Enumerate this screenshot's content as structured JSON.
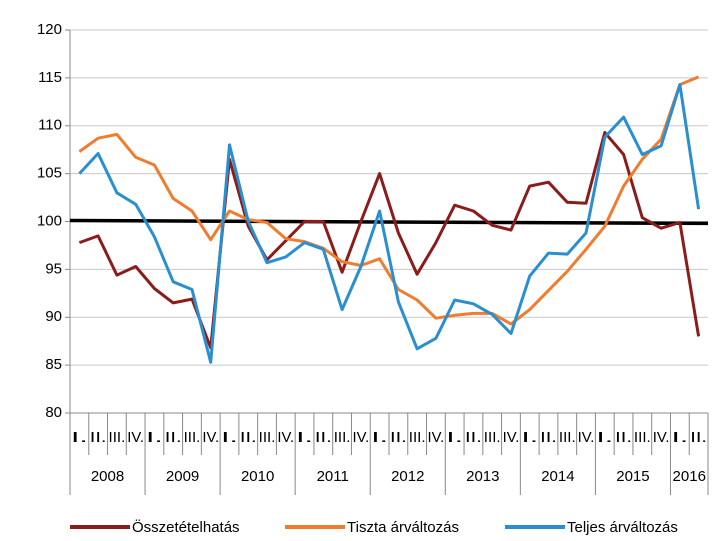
{
  "chart_data": {
    "type": "line",
    "category_groups": [
      {
        "label": "2008",
        "categories": [
          "I.",
          "II.",
          "III.",
          "IV."
        ]
      },
      {
        "label": "2009",
        "categories": [
          "I.",
          "II.",
          "III.",
          "IV."
        ]
      },
      {
        "label": "2010",
        "categories": [
          "I.",
          "II.",
          "III.",
          "IV."
        ]
      },
      {
        "label": "2011",
        "categories": [
          "I.",
          "II.",
          "III.",
          "IV."
        ]
      },
      {
        "label": "2012",
        "categories": [
          "I.",
          "II.",
          "III.",
          "IV."
        ]
      },
      {
        "label": "2013",
        "categories": [
          "I.",
          "II.",
          "III.",
          "IV."
        ]
      },
      {
        "label": "2014",
        "categories": [
          "I.",
          "II.",
          "III.",
          "IV."
        ]
      },
      {
        "label": "2015",
        "categories": [
          "I.",
          "II.",
          "III.",
          "IV."
        ]
      },
      {
        "label": "2016",
        "categories": [
          "I.",
          "II."
        ]
      }
    ],
    "series": [
      {
        "name": "Összetételhatás",
        "color": "#8b1c1c",
        "values": [
          97.8,
          98.5,
          94.4,
          95.3,
          93,
          91.5,
          91.9,
          86.8,
          106.5,
          99.5,
          96,
          98,
          100,
          100,
          94.7,
          100,
          105,
          98.8,
          94.5,
          97.8,
          101.7,
          101.1,
          99.6,
          99.1,
          103.7,
          104.1,
          102,
          101.9,
          109.3,
          107,
          100.4,
          99.3,
          99.9,
          88
        ]
      },
      {
        "name": "Tiszta árváltozás",
        "color": "#f07c30",
        "values": [
          107.3,
          108.7,
          109.1,
          106.7,
          105.9,
          102.4,
          101.1,
          98.1,
          101.1,
          100.2,
          99.9,
          98.2,
          97.9,
          97.2,
          95.8,
          95.4,
          96.1,
          92.9,
          91.8,
          89.9,
          90.2,
          90.4,
          90.4,
          89.3,
          90.8,
          92.8,
          94.8,
          97.1,
          99.5,
          103.7,
          106.5,
          108.6,
          114.3,
          115.1
        ]
      },
      {
        "name": "Teljes árváltozás",
        "color": "#2a8fd0",
        "values": [
          105,
          107.1,
          103,
          101.8,
          98.4,
          93.7,
          92.9,
          85.3,
          108,
          100,
          95.7,
          96.3,
          97.8,
          97.1,
          90.8,
          95.3,
          101.1,
          91.6,
          86.7,
          87.8,
          91.8,
          91.4,
          90.3,
          88.3,
          94.3,
          96.7,
          96.6,
          98.8,
          108.8,
          110.9,
          107,
          107.9,
          114.3,
          101.3
        ]
      }
    ],
    "reference_line": {
      "color": "#000000",
      "start": 100.1,
      "end": 99.8
    },
    "ylim": [
      80,
      120
    ],
    "yticks": [
      80,
      85,
      90,
      95,
      100,
      105,
      110,
      115,
      120
    ],
    "grid": true,
    "legend": "bottom"
  }
}
